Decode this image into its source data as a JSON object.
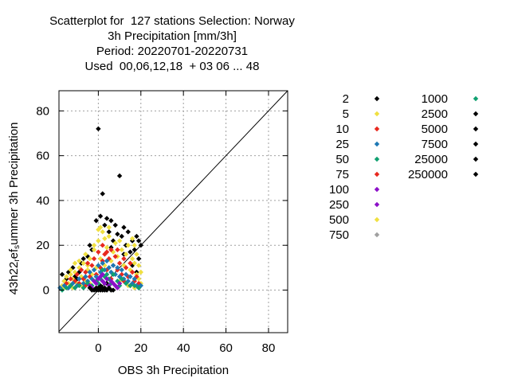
{
  "title_lines": [
    "Scatterplot for  127 stations Selection: Norway",
    "3h Precipitation [mm/3h]",
    "Period: 20220701-20220731",
    "Used  00,06,12,18  + 03 06 ... 48"
  ],
  "colors": {
    "black": "#000000",
    "yellow": "#f0e040",
    "red": "#e8281e",
    "blue": "#1e78b4",
    "teal": "#10a070",
    "purple": "#8c10c8",
    "gray": "#a0a0a0",
    "grid": "#a0a0a0"
  },
  "chart_data": {
    "type": "scatter",
    "xlabel": "OBS 3h Precipitation",
    "ylabel_parts": [
      "43h22",
      "r",
      "ef",
      "s",
      "ummer 3h Precipitation"
    ],
    "xlim": [
      -18.5,
      89
    ],
    "ylim": [
      -19,
      89
    ],
    "xticks": [
      0,
      20,
      40,
      60,
      80
    ],
    "yticks": [
      0,
      20,
      40,
      60,
      80
    ],
    "grid": true,
    "diagonal": true,
    "legend_placement": "right",
    "legend": [
      {
        "label": "2",
        "color": "black"
      },
      {
        "label": "5",
        "color": "yellow"
      },
      {
        "label": "10",
        "color": "red"
      },
      {
        "label": "25",
        "color": "blue"
      },
      {
        "label": "50",
        "color": "teal"
      },
      {
        "label": "75",
        "color": "red"
      },
      {
        "label": "100",
        "color": "purple"
      },
      {
        "label": "250",
        "color": "purple"
      },
      {
        "label": "500",
        "color": "yellow"
      },
      {
        "label": "750",
        "color": "gray"
      },
      {
        "label": "1000",
        "color": "teal"
      },
      {
        "label": "2500",
        "color": "black"
      },
      {
        "label": "5000",
        "color": "black"
      },
      {
        "label": "7500",
        "color": "black"
      },
      {
        "label": "25000",
        "color": "black"
      },
      {
        "label": "250000",
        "color": "black"
      }
    ],
    "series": [
      {
        "color": "black",
        "points": [
          [
            0,
            72
          ],
          [
            10,
            51
          ],
          [
            2,
            43
          ],
          [
            1,
            33
          ],
          [
            4,
            32
          ],
          [
            6,
            31
          ],
          [
            3,
            29
          ],
          [
            8,
            29
          ],
          [
            -1,
            31
          ],
          [
            12,
            28
          ],
          [
            14,
            26
          ],
          [
            9,
            25
          ],
          [
            18,
            24
          ],
          [
            16,
            22
          ],
          [
            5,
            26
          ],
          [
            11,
            24
          ],
          [
            -5,
            15
          ],
          [
            -8,
            12
          ],
          [
            -3,
            18
          ],
          [
            -7,
            14
          ],
          [
            -12,
            10
          ],
          [
            -14,
            8
          ],
          [
            -17,
            7
          ],
          [
            -10,
            5
          ],
          [
            13,
            20
          ],
          [
            17,
            18
          ],
          [
            19,
            22
          ],
          [
            20,
            20
          ],
          [
            7,
            22
          ],
          [
            15,
            17
          ],
          [
            2,
            1
          ],
          [
            0,
            0
          ],
          [
            1,
            2
          ],
          [
            -1,
            1
          ],
          [
            4,
            3
          ],
          [
            3,
            0
          ],
          [
            16,
            11
          ],
          [
            18,
            8
          ],
          [
            -15,
            5
          ],
          [
            -16,
            4
          ],
          [
            -9,
            8
          ],
          [
            -11,
            6
          ],
          [
            19,
            14
          ],
          [
            12,
            16
          ],
          [
            -4,
            20
          ],
          [
            6,
            19
          ]
        ]
      },
      {
        "color": "yellow",
        "points": [
          [
            -17,
            2
          ],
          [
            -16,
            4
          ],
          [
            -15,
            6
          ],
          [
            -14,
            3
          ],
          [
            -13,
            7
          ],
          [
            -12,
            5
          ],
          [
            -11,
            8
          ],
          [
            -10,
            3
          ],
          [
            -9,
            10
          ],
          [
            -8,
            6
          ],
          [
            -7,
            12
          ],
          [
            -6,
            4
          ],
          [
            -5,
            9
          ],
          [
            -4,
            14
          ],
          [
            -3,
            7
          ],
          [
            -2,
            18
          ],
          [
            -1,
            10
          ],
          [
            0,
            22
          ],
          [
            1,
            14
          ],
          [
            2,
            26
          ],
          [
            3,
            11
          ],
          [
            4,
            19
          ],
          [
            5,
            24
          ],
          [
            6,
            13
          ],
          [
            7,
            17
          ],
          [
            8,
            21
          ],
          [
            9,
            15
          ],
          [
            10,
            22
          ],
          [
            11,
            18
          ],
          [
            12,
            11
          ],
          [
            13,
            16
          ],
          [
            14,
            20
          ],
          [
            15,
            9
          ],
          [
            16,
            14
          ],
          [
            17,
            12
          ],
          [
            18,
            7
          ],
          [
            19,
            5
          ],
          [
            20,
            3
          ],
          [
            20,
            8
          ],
          [
            19,
            11
          ],
          [
            18,
            16
          ],
          [
            17,
            20
          ],
          [
            16,
            23
          ],
          [
            -16,
            1
          ],
          [
            -12,
            1
          ],
          [
            -8,
            2
          ],
          [
            -4,
            3
          ],
          [
            0,
            27
          ],
          [
            1,
            28
          ],
          [
            3,
            23
          ],
          [
            5,
            28
          ],
          [
            -6,
            16
          ],
          [
            -9,
            13
          ],
          [
            -2,
            20
          ],
          [
            -5,
            11
          ],
          [
            6,
            8
          ],
          [
            10,
            4
          ],
          [
            14,
            2
          ],
          [
            17,
            1
          ],
          [
            -13,
            9
          ],
          [
            -11,
            12
          ]
        ]
      },
      {
        "color": "red",
        "points": [
          [
            -15,
            3
          ],
          [
            -13,
            5
          ],
          [
            -11,
            4
          ],
          [
            -10,
            7
          ],
          [
            -8,
            9
          ],
          [
            -7,
            5
          ],
          [
            -6,
            8
          ],
          [
            -5,
            12
          ],
          [
            -4,
            6
          ],
          [
            -3,
            11
          ],
          [
            -2,
            14
          ],
          [
            -1,
            7
          ],
          [
            0,
            17
          ],
          [
            1,
            10
          ],
          [
            2,
            13
          ],
          [
            3,
            16
          ],
          [
            4,
            9
          ],
          [
            5,
            14
          ],
          [
            6,
            18
          ],
          [
            7,
            11
          ],
          [
            8,
            15
          ],
          [
            9,
            9
          ],
          [
            10,
            12
          ],
          [
            11,
            7
          ],
          [
            12,
            14
          ],
          [
            13,
            10
          ],
          [
            14,
            6
          ],
          [
            15,
            12
          ],
          [
            16,
            8
          ],
          [
            17,
            4
          ],
          [
            18,
            6
          ],
          [
            19,
            3
          ],
          [
            -9,
            3
          ],
          [
            -6,
            2
          ],
          [
            2,
            20
          ],
          [
            4,
            17
          ],
          [
            9,
            18
          ],
          [
            12,
            4
          ],
          [
            15,
            2
          ],
          [
            6,
            5
          ]
        ]
      },
      {
        "color": "blue",
        "points": [
          [
            -18,
            1
          ],
          [
            -16,
            2
          ],
          [
            -14,
            1
          ],
          [
            -12,
            3
          ],
          [
            -10,
            2
          ],
          [
            -9,
            5
          ],
          [
            -7,
            3
          ],
          [
            -6,
            6
          ],
          [
            -5,
            4
          ],
          [
            -4,
            8
          ],
          [
            -3,
            5
          ],
          [
            -2,
            9
          ],
          [
            -1,
            6
          ],
          [
            0,
            11
          ],
          [
            1,
            8
          ],
          [
            2,
            12
          ],
          [
            3,
            9
          ],
          [
            4,
            13
          ],
          [
            5,
            10
          ],
          [
            6,
            8
          ],
          [
            7,
            11
          ],
          [
            8,
            7
          ],
          [
            9,
            10
          ],
          [
            10,
            6
          ],
          [
            11,
            9
          ],
          [
            12,
            5
          ],
          [
            13,
            7
          ],
          [
            14,
            4
          ],
          [
            15,
            6
          ],
          [
            16,
            3
          ],
          [
            17,
            5
          ],
          [
            18,
            2
          ],
          [
            19,
            1
          ],
          [
            20,
            2
          ]
        ]
      },
      {
        "color": "teal",
        "points": [
          [
            -17,
            0
          ],
          [
            -15,
            1
          ],
          [
            -13,
            2
          ],
          [
            -11,
            1
          ],
          [
            -9,
            2
          ],
          [
            -7,
            1
          ],
          [
            -5,
            3
          ],
          [
            -3,
            2
          ],
          [
            -1,
            4
          ],
          [
            0,
            3
          ],
          [
            1,
            5
          ],
          [
            3,
            6
          ],
          [
            5,
            5
          ],
          [
            7,
            7
          ],
          [
            9,
            4
          ],
          [
            11,
            5
          ],
          [
            13,
            3
          ],
          [
            15,
            2
          ],
          [
            17,
            2
          ],
          [
            19,
            1
          ],
          [
            2,
            9
          ],
          [
            6,
            3
          ],
          [
            10,
            2
          ],
          [
            4,
            7
          ]
        ]
      },
      {
        "color": "purple",
        "points": [
          [
            -4,
            2
          ],
          [
            -2,
            4
          ],
          [
            -1,
            3
          ],
          [
            0,
            5
          ],
          [
            1,
            6
          ],
          [
            2,
            4
          ],
          [
            3,
            3
          ],
          [
            4,
            5
          ],
          [
            5,
            2
          ],
          [
            6,
            4
          ],
          [
            7,
            3
          ],
          [
            8,
            2
          ],
          [
            9,
            1
          ],
          [
            10,
            3
          ],
          [
            -3,
            1
          ],
          [
            2,
            7
          ]
        ]
      },
      {
        "color": "black",
        "points": [
          [
            -2,
            0
          ],
          [
            -1,
            0
          ],
          [
            0,
            1
          ],
          [
            1,
            0
          ],
          [
            2,
            0
          ],
          [
            3,
            1
          ],
          [
            4,
            0
          ],
          [
            5,
            1
          ],
          [
            6,
            0
          ],
          [
            -3,
            0
          ],
          [
            -4,
            1
          ],
          [
            7,
            0
          ]
        ]
      }
    ]
  }
}
